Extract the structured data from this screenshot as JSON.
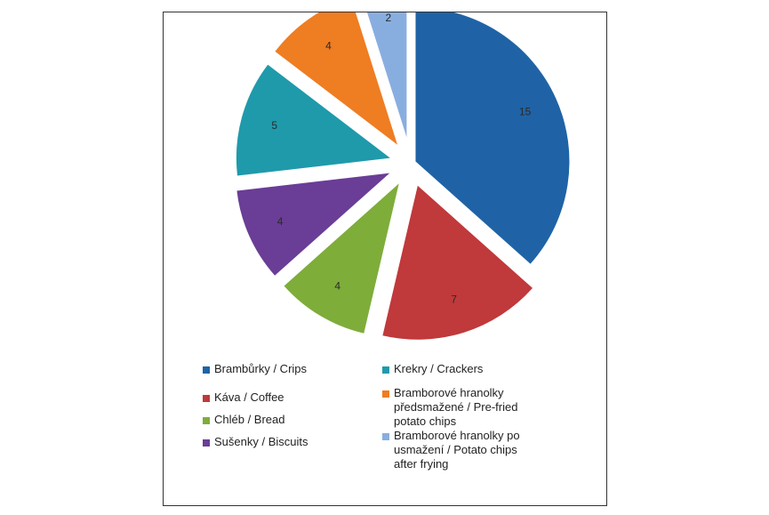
{
  "chart_data": {
    "type": "pie",
    "exploded": true,
    "slices": [
      {
        "label": "Brambůrky / Crips",
        "value": 15,
        "color": "#1f63a6"
      },
      {
        "label": "Káva / Coffee",
        "value": 7,
        "color": "#c0393b"
      },
      {
        "label": "Chléb / Bread",
        "value": 4,
        "color": "#7ead3a"
      },
      {
        "label": "Sušenky / Biscuits",
        "value": 4,
        "color": "#6a3d96"
      },
      {
        "label": "Krekry / Crackers",
        "value": 5,
        "color": "#1f9aab"
      },
      {
        "label": "Bramborové hranolky předsmažené / Pre-fried potato chips",
        "value": 4,
        "color": "#ef7d22"
      },
      {
        "label": "Bramborové hranolky po usmažení / Potato chips after frying",
        "value": 2,
        "color": "#88aee0"
      }
    ],
    "legend": {
      "placement": "bottom",
      "columns": [
        [
          "Brambůrky / Crips",
          "Káva / Coffee",
          "Chléb / Bread",
          "Sušenky / Biscuits"
        ],
        [
          "Krekry / Crackers",
          "Bramborové hranolky předsmažené / Pre-fried potato chips",
          "Bramborové hranolky po usmažení / Potato chips after frying"
        ]
      ]
    },
    "title": "",
    "data_labels": true
  }
}
